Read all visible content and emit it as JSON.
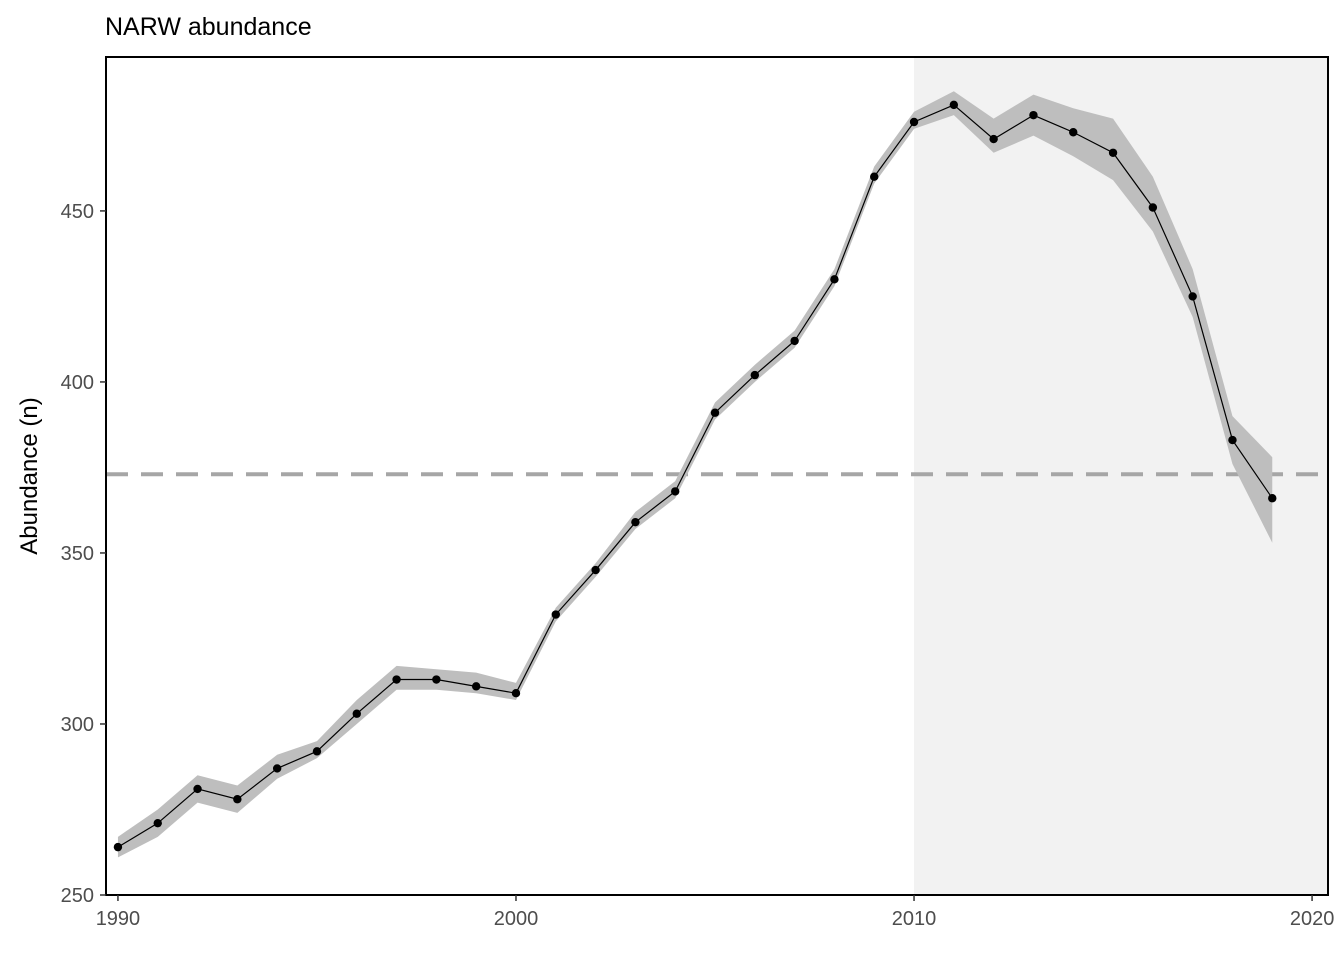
{
  "chart_data": {
    "type": "line",
    "title": "NARW abundance",
    "xlabel": "",
    "ylabel": "Abundance (n)",
    "xlim": [
      1989.7,
      2020.4
    ],
    "ylim": [
      250,
      495
    ],
    "x_ticks": [
      1990,
      2000,
      2010,
      2020
    ],
    "y_ticks": [
      250,
      300,
      350,
      400,
      450
    ],
    "grid": false,
    "legend": "none",
    "shaded_region": {
      "x_start": 2010,
      "x_end": 2020.4,
      "color": "#f2f2f2"
    },
    "reference_line": {
      "y": 373,
      "style": "dashed",
      "color": "#a6a6a6"
    },
    "series": [
      {
        "x": [
          1990,
          1991,
          1992,
          1993,
          1994,
          1995,
          1996,
          1997,
          1998,
          1999,
          2000,
          2001,
          2002,
          2003,
          2004,
          2005,
          2006,
          2007,
          2008,
          2009,
          2010,
          2011,
          2012,
          2013,
          2014,
          2015,
          2016,
          2017,
          2018,
          2019
        ],
        "y": [
          264,
          271,
          281,
          278,
          287,
          292,
          303,
          313,
          313,
          311,
          309,
          332,
          345,
          359,
          368,
          391,
          402,
          412,
          430,
          460,
          476,
          481,
          471,
          478,
          473,
          467,
          451,
          425,
          383,
          366
        ],
        "lower": [
          261,
          267,
          277,
          274,
          284,
          290,
          300,
          310,
          310,
          309,
          307,
          330,
          343,
          357,
          366,
          389,
          400,
          410,
          428,
          458,
          474,
          478,
          467,
          472,
          466,
          459,
          444,
          419,
          376,
          353
        ],
        "upper": [
          267,
          275,
          285,
          282,
          291,
          295,
          307,
          317,
          316,
          315,
          312,
          334,
          347,
          362,
          371,
          394,
          405,
          415,
          433,
          463,
          479,
          485,
          477,
          484,
          480,
          477,
          460,
          433,
          390,
          378
        ],
        "line_color": "#000000",
        "band_color": "#bebebe"
      }
    ]
  }
}
